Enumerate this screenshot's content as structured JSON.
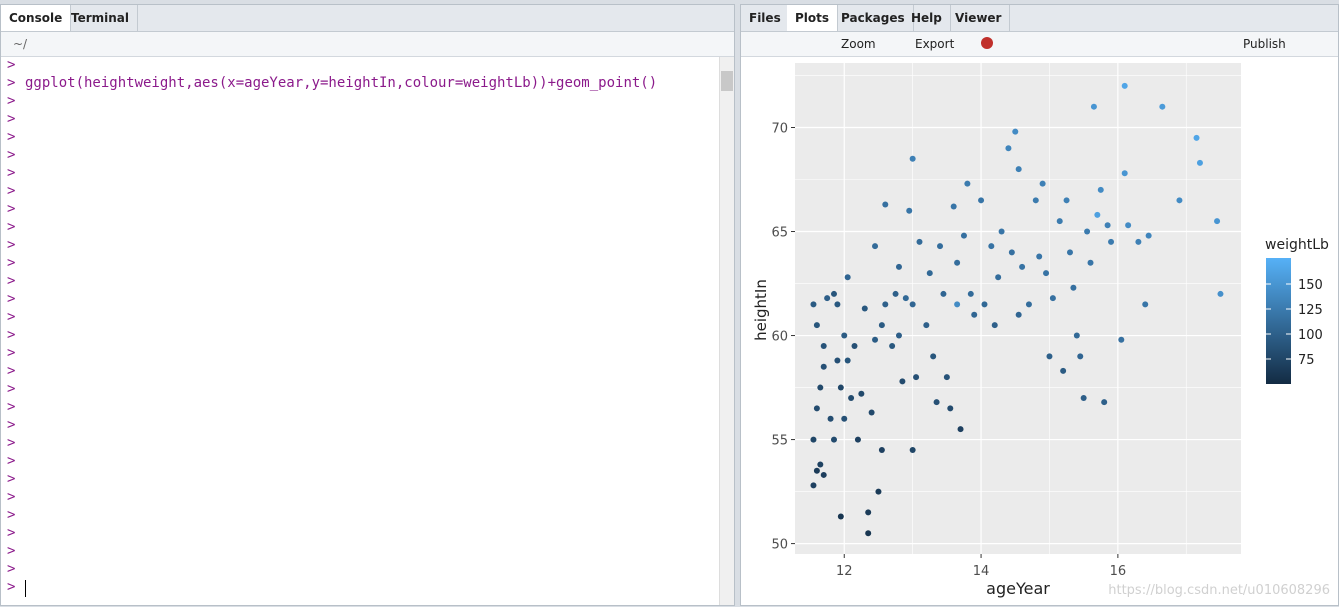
{
  "console_pane": {
    "tabs": [
      "Console",
      "Terminal"
    ],
    "path": "~/",
    "prompts": [
      ">",
      ">",
      ">",
      ">",
      ">",
      ">",
      ">",
      ">",
      ">",
      ">",
      ">",
      ">",
      ">",
      ">",
      ">",
      ">",
      ">",
      ">",
      ">",
      ">",
      ">",
      ">",
      ">",
      ">",
      ">",
      ">",
      ">",
      ">",
      ">",
      ">"
    ],
    "command": "ggplot(heightweight,aes(x=ageYear,y=heightIn,colour=weightLb))+geom_point()"
  },
  "plot_pane": {
    "tabs": [
      "Files",
      "Plots",
      "Packages",
      "Help",
      "Viewer"
    ],
    "toolbar": [
      "Zoom",
      "Export",
      "Publish"
    ],
    "watermark": "https://blog.csdn.net/u010608296"
  },
  "chart_data": {
    "type": "scatter",
    "x_label": "ageYear",
    "y_label": "heightIn",
    "legend_title": "weightLb",
    "xlim": [
      11.28,
      17.8
    ],
    "ylim": [
      49.5,
      73.1
    ],
    "xticks": [
      12,
      14,
      16
    ],
    "yticks": [
      50,
      55,
      60,
      65,
      70
    ],
    "grid": true,
    "color_scale": {
      "lim": [
        50,
        176
      ],
      "ticks": [
        75,
        100,
        125,
        150
      ],
      "low": "#132B43",
      "high": "#56B1F7"
    },
    "x": [
      11.55,
      11.6,
      11.65,
      11.7,
      11.55,
      11.6,
      11.65,
      11.7,
      11.6,
      11.55,
      11.75,
      11.7,
      11.8,
      11.85,
      11.9,
      11.95,
      11.9,
      11.85,
      11.95,
      12.0,
      12.05,
      12.0,
      12.05,
      12.1,
      12.15,
      12.2,
      12.25,
      12.3,
      12.35,
      12.35,
      12.4,
      12.45,
      12.5,
      12.45,
      12.55,
      12.55,
      12.6,
      12.6,
      12.7,
      12.75,
      12.8,
      12.8,
      12.85,
      12.9,
      12.95,
      13.0,
      13.0,
      13.05,
      13.0,
      13.1,
      13.2,
      13.25,
      13.3,
      13.35,
      13.4,
      13.45,
      13.5,
      13.55,
      13.6,
      13.65,
      13.65,
      13.7,
      13.75,
      13.8,
      13.85,
      13.9,
      14.0,
      14.05,
      14.15,
      14.2,
      14.25,
      14.3,
      14.4,
      14.45,
      14.5,
      14.55,
      14.55,
      14.6,
      14.7,
      14.8,
      14.85,
      14.9,
      14.95,
      15.0,
      15.05,
      15.15,
      15.2,
      15.25,
      15.3,
      15.35,
      15.4,
      15.45,
      15.5,
      15.55,
      15.6,
      15.65,
      15.7,
      15.75,
      15.8,
      15.85,
      15.9,
      16.05,
      16.1,
      16.1,
      16.15,
      16.3,
      16.4,
      16.45,
      16.65,
      16.9,
      17.15,
      17.2,
      17.45,
      17.5
    ],
    "y": [
      52.8,
      53.5,
      53.8,
      53.3,
      55,
      56.5,
      57.5,
      58.5,
      60.5,
      61.5,
      61.8,
      59.5,
      56,
      55,
      58.8,
      57.5,
      61.5,
      62,
      51.3,
      56,
      58.8,
      60,
      62.8,
      57,
      59.5,
      55,
      57.2,
      61.3,
      51.5,
      50.5,
      56.3,
      59.8,
      52.5,
      64.3,
      54.5,
      60.5,
      66.3,
      61.5,
      59.5,
      62,
      63.3,
      60,
      57.8,
      61.8,
      66,
      68.5,
      54.5,
      58,
      61.5,
      64.5,
      60.5,
      63,
      59,
      56.8,
      64.3,
      62,
      58,
      56.5,
      66.2,
      61.5,
      63.5,
      55.5,
      64.8,
      67.3,
      62,
      61,
      66.5,
      61.5,
      64.3,
      60.5,
      62.8,
      65,
      69,
      64,
      69.8,
      68,
      61,
      63.3,
      61.5,
      66.5,
      63.8,
      67.3,
      63,
      59,
      61.8,
      65.5,
      58.3,
      66.5,
      64,
      62.3,
      60,
      59,
      57,
      65,
      63.5,
      71,
      65.8,
      67,
      56.8,
      65.3,
      64.5,
      59.8,
      72,
      67.8,
      65.3,
      64.5,
      61.5,
      64.8,
      71,
      66.5,
      69.5,
      68.3,
      65.5,
      62
    ],
    "weight": [
      70,
      65,
      72,
      68,
      75,
      80,
      78,
      85,
      90,
      95,
      98,
      88,
      82,
      80,
      84,
      76,
      92,
      90,
      60,
      85,
      90,
      95,
      105,
      80,
      85,
      70,
      78,
      92,
      65,
      60,
      78,
      96,
      65,
      110,
      70,
      95,
      115,
      100,
      92,
      100,
      105,
      98,
      80,
      108,
      120,
      130,
      75,
      85,
      105,
      110,
      100,
      108,
      90,
      85,
      112,
      105,
      88,
      80,
      120,
      140,
      112,
      70,
      115,
      125,
      110,
      105,
      120,
      108,
      118,
      100,
      112,
      120,
      135,
      115,
      140,
      130,
      105,
      118,
      112,
      125,
      120,
      130,
      118,
      100,
      115,
      125,
      95,
      130,
      120,
      115,
      108,
      105,
      98,
      125,
      120,
      150,
      160,
      140,
      100,
      130,
      125,
      115,
      165,
      150,
      140,
      130,
      120,
      135,
      155,
      140,
      165,
      160,
      150,
      145
    ]
  }
}
